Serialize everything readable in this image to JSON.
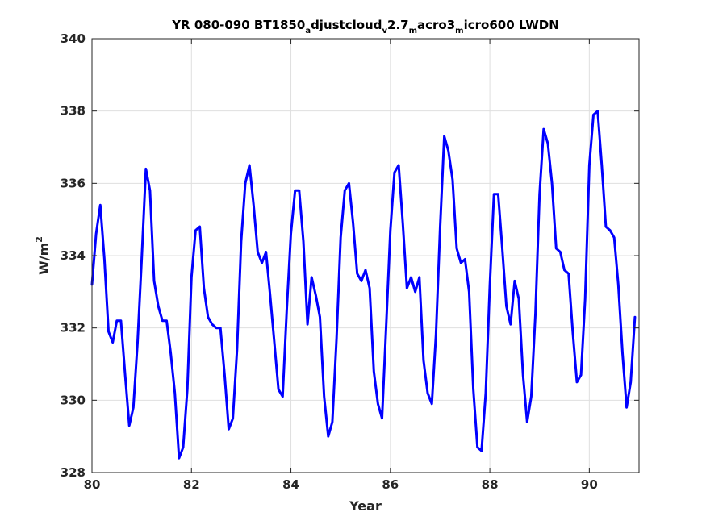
{
  "chart_data": {
    "type": "line",
    "title_parts": [
      {
        "text": "YR 080-090 BT1850",
        "sub": false
      },
      {
        "text": "a",
        "sub": true
      },
      {
        "text": "djustcloud",
        "sub": false
      },
      {
        "text": "v",
        "sub": true
      },
      {
        "text": "2.7",
        "sub": false
      },
      {
        "text": "m",
        "sub": true
      },
      {
        "text": "acro3",
        "sub": false
      },
      {
        "text": "m",
        "sub": true
      },
      {
        "text": "icro600 LWDN",
        "sub": false
      }
    ],
    "xlabel": "Year",
    "ylabel": "W/m",
    "ylabel_superscript": "2",
    "xlim": [
      80,
      91
    ],
    "ylim": [
      328,
      340
    ],
    "xticks": [
      80,
      82,
      84,
      86,
      88,
      90
    ],
    "yticks": [
      328,
      330,
      332,
      334,
      336,
      338,
      340
    ],
    "grid": true,
    "line_color": "#0000ff",
    "series": [
      {
        "x": [
          80.0,
          80.083,
          80.167,
          80.25,
          80.333,
          80.417,
          80.5,
          80.583,
          80.667,
          80.75,
          80.833,
          80.917,
          81.0,
          81.083,
          81.167,
          81.25,
          81.333,
          81.417,
          81.5,
          81.583,
          81.667,
          81.75,
          81.833,
          81.917,
          82.0,
          82.083,
          82.167,
          82.25,
          82.333,
          82.417,
          82.5,
          82.583,
          82.667,
          82.75,
          82.833,
          82.917,
          83.0,
          83.083,
          83.167,
          83.25,
          83.333,
          83.417,
          83.5,
          83.583,
          83.667,
          83.75,
          83.833,
          83.917,
          84.0,
          84.083,
          84.167,
          84.25,
          84.333,
          84.417,
          84.5,
          84.583,
          84.667,
          84.75,
          84.833,
          84.917,
          85.0,
          85.083,
          85.167,
          85.25,
          85.333,
          85.417,
          85.5,
          85.583,
          85.667,
          85.75,
          85.833,
          85.917,
          86.0,
          86.083,
          86.167,
          86.25,
          86.333,
          86.417,
          86.5,
          86.583,
          86.667,
          86.75,
          86.833,
          86.917,
          87.0,
          87.083,
          87.167,
          87.25,
          87.333,
          87.417,
          87.5,
          87.583,
          87.667,
          87.75,
          87.833,
          87.917,
          88.0,
          88.083,
          88.167,
          88.25,
          88.333,
          88.417,
          88.5,
          88.583,
          88.667,
          88.75,
          88.833,
          88.917,
          89.0,
          89.083,
          89.167,
          89.25,
          89.333,
          89.417,
          89.5,
          89.583,
          89.667,
          89.75,
          89.833,
          89.917,
          90.0,
          90.083,
          90.167,
          90.25,
          90.333,
          90.417,
          90.5,
          90.583,
          90.667,
          90.75,
          90.833,
          90.917
        ],
        "values": [
          333.2,
          334.6,
          335.4,
          333.9,
          331.9,
          331.6,
          332.2,
          332.2,
          330.7,
          329.3,
          329.8,
          331.6,
          333.9,
          336.4,
          335.8,
          333.3,
          332.6,
          332.2,
          332.2,
          331.3,
          330.2,
          328.4,
          328.7,
          330.3,
          333.4,
          334.7,
          334.8,
          333.1,
          332.3,
          332.1,
          332.0,
          332.0,
          330.7,
          329.2,
          329.5,
          331.4,
          334.4,
          336.0,
          336.5,
          335.4,
          334.1,
          333.8,
          334.1,
          332.9,
          331.6,
          330.3,
          330.1,
          332.5,
          334.6,
          335.8,
          335.8,
          334.4,
          332.1,
          333.4,
          332.9,
          332.3,
          330.1,
          329.0,
          329.4,
          331.7,
          334.5,
          335.8,
          336.0,
          334.9,
          333.5,
          333.3,
          333.6,
          333.1,
          330.8,
          329.9,
          329.5,
          332.1,
          334.7,
          336.3,
          336.5,
          334.9,
          333.1,
          333.4,
          333.0,
          333.4,
          331.1,
          330.2,
          329.9,
          331.8,
          334.8,
          337.3,
          336.9,
          336.1,
          334.2,
          333.8,
          333.9,
          333.0,
          330.3,
          328.7,
          328.6,
          330.2,
          333.2,
          335.7,
          335.7,
          334.2,
          332.6,
          332.1,
          333.3,
          332.8,
          330.7,
          329.4,
          330.1,
          332.4,
          335.7,
          337.5,
          337.1,
          336.0,
          334.2,
          334.1,
          333.6,
          333.5,
          331.9,
          330.5,
          330.7,
          332.8,
          336.5,
          337.9,
          338.0,
          336.5,
          334.8,
          334.7,
          334.5,
          333.2,
          331.3,
          329.8,
          330.5,
          332.3
        ]
      }
    ]
  }
}
